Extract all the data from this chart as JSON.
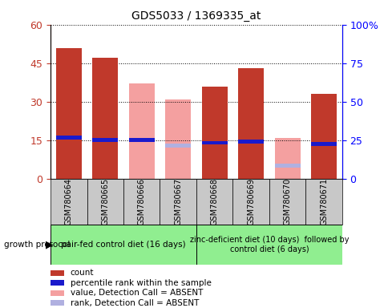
{
  "title": "GDS5033 / 1369335_at",
  "samples": [
    "GSM780664",
    "GSM780665",
    "GSM780666",
    "GSM780667",
    "GSM780668",
    "GSM780669",
    "GSM780670",
    "GSM780671"
  ],
  "count_values": [
    51,
    47,
    null,
    null,
    36,
    43,
    null,
    33
  ],
  "value_absent": [
    null,
    null,
    37,
    31,
    null,
    null,
    16,
    null
  ],
  "rank_present": [
    16,
    15,
    15,
    null,
    14,
    14.5,
    null,
    13.5
  ],
  "rank_absent": [
    null,
    null,
    null,
    13,
    null,
    null,
    5,
    null
  ],
  "left_ylim": [
    0,
    60
  ],
  "right_ylim": [
    0,
    100
  ],
  "left_yticks": [
    0,
    15,
    30,
    45,
    60
  ],
  "right_yticks": [
    0,
    25,
    50,
    75,
    100
  ],
  "right_yticklabels": [
    "0",
    "25",
    "50",
    "75",
    "100%"
  ],
  "color_count": "#c0392b",
  "color_rank_present": "#1a1acc",
  "color_value_absent": "#f4a0a0",
  "color_rank_absent": "#b0b0e0",
  "group1_label": "pair-fed control diet (16 days)",
  "group2_label": "zinc-deficient diet (10 days)  followed by\ncontrol diet (6 days)",
  "growth_protocol_label": "growth protocol",
  "legend": [
    {
      "label": "count",
      "color": "#c0392b"
    },
    {
      "label": "percentile rank within the sample",
      "color": "#1a1acc"
    },
    {
      "label": "value, Detection Call = ABSENT",
      "color": "#f4a0a0"
    },
    {
      "label": "rank, Detection Call = ABSENT",
      "color": "#b0b0e0"
    }
  ]
}
